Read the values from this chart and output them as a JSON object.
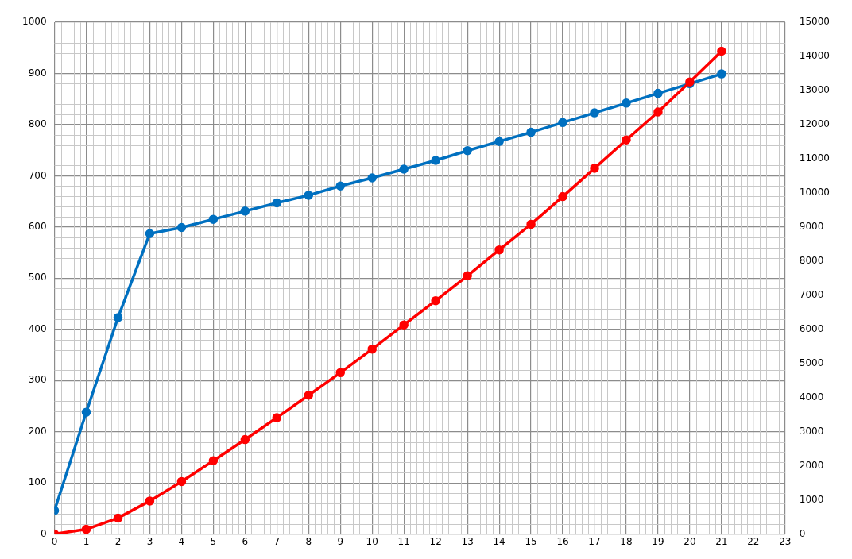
{
  "chart_data": {
    "type": "line",
    "x": [
      0,
      1,
      2,
      3,
      4,
      5,
      6,
      7,
      8,
      9,
      10,
      11,
      12,
      13,
      14,
      15,
      16,
      17,
      18,
      19,
      20,
      21
    ],
    "series": [
      {
        "color": "#0070c0",
        "values": [
          46,
          238,
          423,
          587,
          599,
          615,
          631,
          647,
          662,
          680,
          696,
          713,
          730,
          749,
          767,
          785,
          804,
          823,
          842,
          861,
          880,
          899
        ]
      },
      {
        "color": "#ff0000",
        "axis": "y2",
        "values": [
          0,
          140,
          470,
          970,
          1540,
          2150,
          2770,
          3410,
          4070,
          4730,
          5420,
          6130,
          6840,
          7570,
          8330,
          9080,
          9890,
          10720,
          11550,
          12370,
          13250,
          14150
        ]
      }
    ],
    "xlim": [
      0,
      23
    ],
    "xticks": [
      0,
      1,
      2,
      3,
      4,
      5,
      6,
      7,
      8,
      9,
      10,
      11,
      12,
      13,
      14,
      15,
      16,
      17,
      18,
      19,
      20,
      21,
      22,
      23
    ],
    "ylim": [
      0,
      1000
    ],
    "yticks": [
      0,
      100,
      200,
      300,
      400,
      500,
      600,
      700,
      800,
      900,
      1000
    ],
    "y2lim": [
      0,
      15000
    ],
    "y2ticks": [
      0,
      1000,
      2000,
      3000,
      4000,
      5000,
      6000,
      7000,
      8000,
      9000,
      10000,
      11000,
      12000,
      13000,
      14000,
      15000
    ],
    "grid": true,
    "legend": false,
    "marker": "circle",
    "line_style": "solid"
  }
}
